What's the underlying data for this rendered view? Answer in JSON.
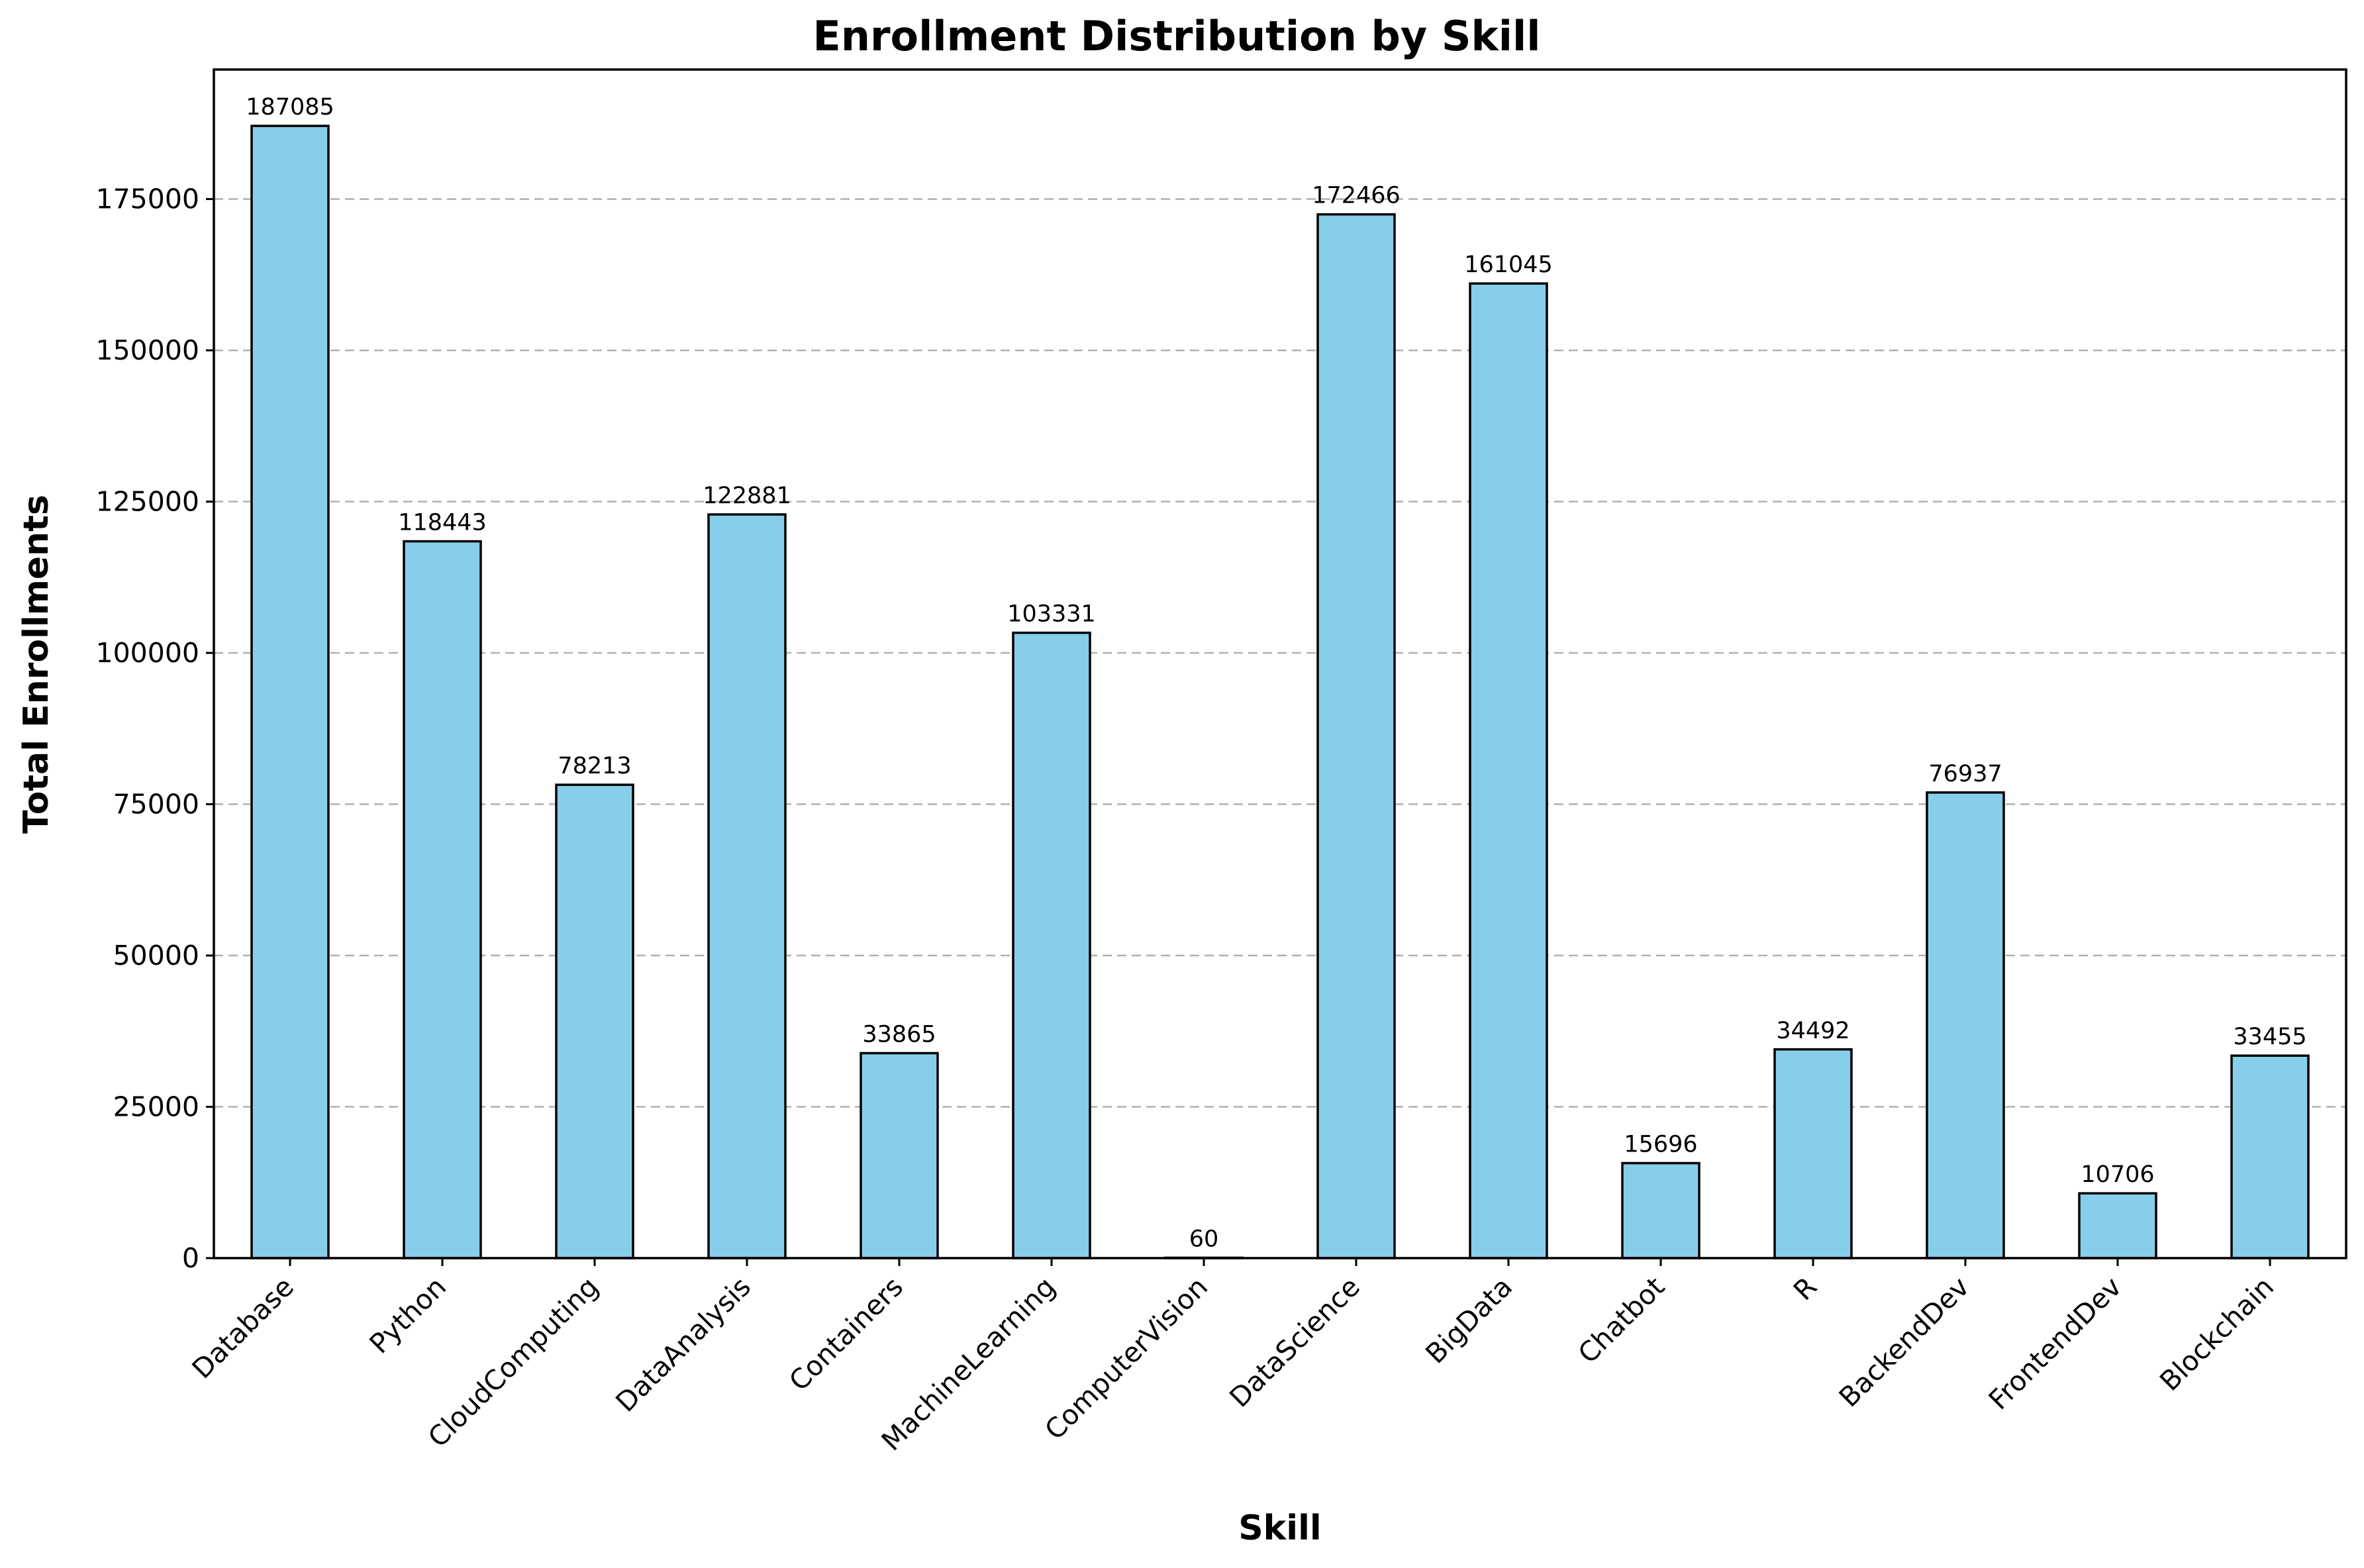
{
  "chart_data": {
    "type": "bar",
    "title": "Enrollment Distribution by Skill",
    "xlabel": "Skill",
    "ylabel": "Total Enrollments",
    "categories": [
      "Database",
      "Python",
      "CloudComputing",
      "DataAnalysis",
      "Containers",
      "MachineLearning",
      "ComputerVision",
      "DataScience",
      "BigData",
      "Chatbot",
      "R",
      "BackendDev",
      "FrontendDev",
      "Blockchain"
    ],
    "values": [
      187085,
      118443,
      78213,
      122881,
      33865,
      103331,
      60,
      172466,
      161045,
      15696,
      34492,
      76937,
      10706,
      33455
    ],
    "value_labels": [
      "187085",
      "118443",
      "78213",
      "122881",
      "33865",
      "103331",
      "60",
      "172466",
      "161045",
      "15696",
      "34492",
      "76937",
      "10706",
      "33455"
    ],
    "ylim": [
      0,
      196400
    ],
    "yticks": [
      0,
      25000,
      50000,
      75000,
      100000,
      125000,
      150000,
      175000
    ],
    "ytick_labels": [
      "0",
      "25000",
      "50000",
      "75000",
      "100000",
      "125000",
      "150000",
      "175000"
    ],
    "grid": "y-dashed",
    "bar_color": "#87CEEB",
    "edge_color": "#000000"
  }
}
